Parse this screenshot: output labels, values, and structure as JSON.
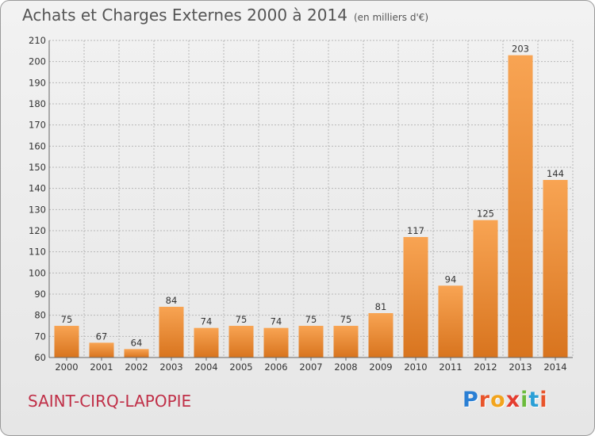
{
  "header": {
    "title": "Achats et Charges Externes 2000 à 2014",
    "unit": "(en milliers d'€)"
  },
  "footer": {
    "commune": "SAINT-CIRQ-LAPOPIE",
    "logo_letters": [
      "P",
      "r",
      "o",
      "x",
      "i",
      "t",
      "i"
    ],
    "logo_colors": [
      "#2a7fd4",
      "#e8542b",
      "#f2a41d",
      "#e43d30",
      "#6cbb3c",
      "#2a9fd6",
      "#e8542b"
    ]
  },
  "colors": {
    "bar_light": "#f8a453",
    "bar_dark": "#d8741e",
    "grid": "#b8b8b8",
    "commune_text": "#c03048"
  },
  "chart_data": {
    "type": "bar",
    "title": "Achats et Charges Externes 2000 à 2014",
    "subtitle": "(en milliers d'€)",
    "categories": [
      "2000",
      "2001",
      "2002",
      "2003",
      "2004",
      "2005",
      "2006",
      "2007",
      "2008",
      "2009",
      "2010",
      "2011",
      "2012",
      "2013",
      "2014"
    ],
    "values": [
      75,
      67,
      64,
      84,
      74,
      75,
      74,
      75,
      75,
      81,
      117,
      94,
      125,
      203,
      144
    ],
    "ylim": [
      60,
      210
    ],
    "yticks": [
      60,
      70,
      80,
      90,
      100,
      110,
      120,
      130,
      140,
      150,
      160,
      170,
      180,
      190,
      200,
      210
    ],
    "grid": true,
    "data_labels": true
  }
}
